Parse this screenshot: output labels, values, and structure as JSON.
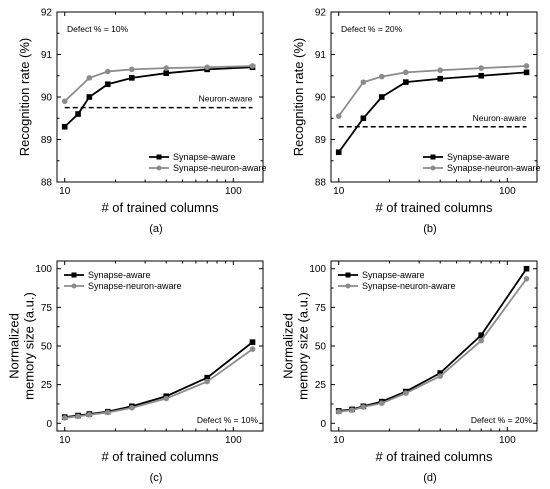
{
  "chart_data": [
    {
      "type": "line",
      "caption": "(a)",
      "annotation": "Defect % = 10%",
      "xlabel": "# of trained columns",
      "ylabel": "Recognition rate (%)",
      "xscale": "log",
      "xlim": [
        9,
        150
      ],
      "ylim": [
        88,
        92
      ],
      "yticks": [
        88,
        89,
        90,
        91,
        92
      ],
      "xticks": [
        10,
        100
      ],
      "legend_position": "bottom-right",
      "x": [
        10,
        12,
        14,
        18,
        25,
        40,
        70,
        130
      ],
      "series": [
        {
          "name": "Synapse-aware",
          "color": "#000000",
          "marker": "square",
          "values": [
            89.3,
            89.6,
            90.0,
            90.3,
            90.45,
            90.56,
            90.65,
            90.7
          ]
        },
        {
          "name": "Synapse-neuron-aware",
          "color": "#8c8c8c",
          "marker": "circle",
          "values": [
            89.9,
            null,
            90.45,
            90.6,
            90.65,
            90.68,
            90.7,
            90.73
          ]
        }
      ],
      "reference_line": {
        "label": "Neuron-aware",
        "value": 89.75
      }
    },
    {
      "type": "line",
      "caption": "(b)",
      "annotation": "Defect % = 20%",
      "xlabel": "# of trained columns",
      "ylabel": "Recognition rate (%)",
      "xscale": "log",
      "xlim": [
        9,
        150
      ],
      "ylim": [
        88,
        92
      ],
      "yticks": [
        88,
        89,
        90,
        91,
        92
      ],
      "xticks": [
        10,
        100
      ],
      "legend_position": "bottom-right",
      "x": [
        10,
        14,
        18,
        25,
        40,
        70,
        130
      ],
      "series": [
        {
          "name": "Synapse-aware",
          "color": "#000000",
          "marker": "square",
          "values": [
            88.7,
            89.5,
            90.0,
            90.35,
            90.43,
            90.5,
            90.58
          ]
        },
        {
          "name": "Synapse-neuron-aware",
          "color": "#8c8c8c",
          "marker": "circle",
          "values": [
            89.55,
            90.35,
            90.48,
            90.58,
            90.63,
            90.68,
            90.73
          ]
        }
      ],
      "reference_line": {
        "label": "Neuron-aware",
        "value": 89.3
      }
    },
    {
      "type": "line",
      "caption": "(c)",
      "annotation": "Defect % = 10%",
      "xlabel": "# of trained columns",
      "ylabel": "Normalized memory size (a.u.)",
      "ylabel_lines": [
        "Normalized",
        "memory size (a.u.)"
      ],
      "xscale": "log",
      "xlim": [
        9,
        150
      ],
      "ylim": [
        -5,
        105
      ],
      "yticks": [
        0,
        25,
        50,
        75,
        100
      ],
      "xticks": [
        10,
        100
      ],
      "legend_position": "top-left",
      "x": [
        10,
        12,
        14,
        18,
        25,
        40,
        70,
        130
      ],
      "series": [
        {
          "name": "Synapse-aware",
          "color": "#000000",
          "marker": "square",
          "values": [
            4.0,
            5.0,
            6.0,
            7.5,
            11.0,
            17.5,
            29.5,
            52.5
          ]
        },
        {
          "name": "Synapse-neuron-aware",
          "color": "#8c8c8c",
          "marker": "circle",
          "values": [
            3.5,
            4.5,
            5.5,
            7.0,
            10.0,
            16.0,
            27.0,
            48.0
          ]
        }
      ]
    },
    {
      "type": "line",
      "caption": "(d)",
      "annotation": "Defect % = 20%",
      "xlabel": "# of trained columns",
      "ylabel": "Normalized memory size (a.u.)",
      "ylabel_lines": [
        "Normalized",
        "memory size (a.u.)"
      ],
      "xscale": "log",
      "xlim": [
        9,
        150
      ],
      "ylim": [
        -5,
        105
      ],
      "yticks": [
        0,
        25,
        50,
        75,
        100
      ],
      "xticks": [
        10,
        100
      ],
      "legend_position": "top-left",
      "x": [
        10,
        12,
        14,
        18,
        25,
        40,
        70,
        130
      ],
      "series": [
        {
          "name": "Synapse-aware",
          "color": "#000000",
          "marker": "square",
          "values": [
            8.0,
            9.0,
            11.0,
            14.0,
            20.5,
            32.5,
            57.0,
            100.0
          ]
        },
        {
          "name": "Synapse-neuron-aware",
          "color": "#8c8c8c",
          "marker": "circle",
          "values": [
            7.5,
            8.5,
            10.5,
            13.0,
            19.5,
            30.5,
            53.5,
            93.5
          ]
        }
      ]
    }
  ]
}
